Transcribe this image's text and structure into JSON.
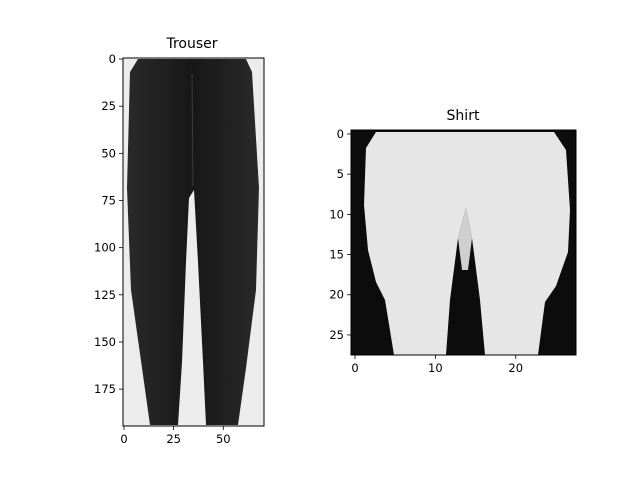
{
  "chart_data": [
    {
      "type": "image",
      "title": "Trouser",
      "colormap": "gray",
      "xlim": [
        0,
        70
      ],
      "ylim": [
        0,
        194
      ],
      "xticks": [
        0,
        25,
        50
      ],
      "yticks": [
        0,
        25,
        50,
        75,
        100,
        125,
        150,
        175
      ],
      "grid": false
    },
    {
      "type": "image",
      "title": "Shirt",
      "colormap": "gray",
      "xlim": [
        0,
        27
      ],
      "ylim": [
        0,
        27
      ],
      "xticks": [
        0,
        10,
        20
      ],
      "yticks": [
        0,
        5,
        10,
        15,
        20,
        25
      ],
      "grid": false
    }
  ]
}
